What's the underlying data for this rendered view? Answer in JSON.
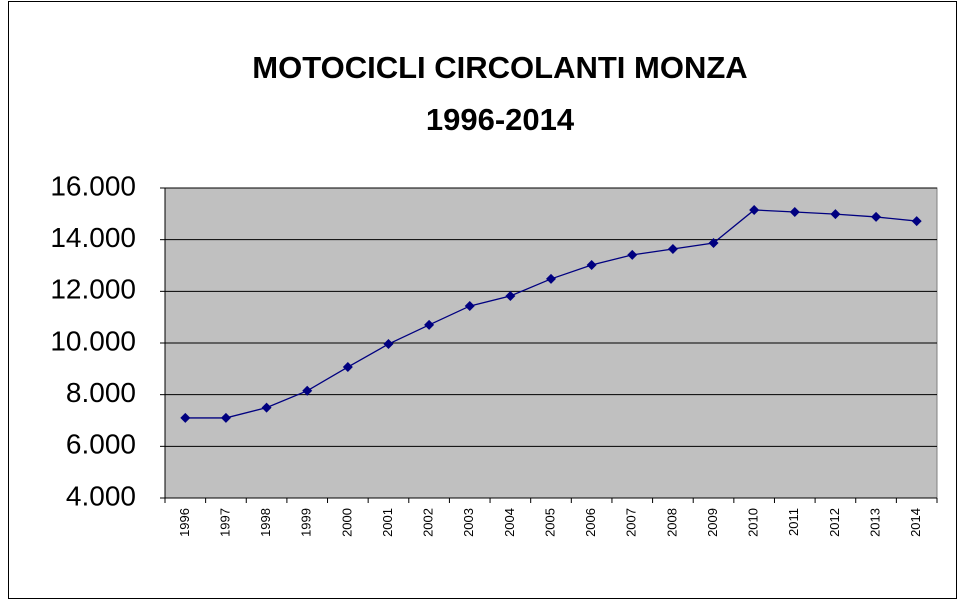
{
  "chart_data": {
    "type": "line",
    "title": [
      "MOTOCICLI CIRCOLANTI MONZA",
      "1996-2014"
    ],
    "categories": [
      "1996",
      "1997",
      "1998",
      "1999",
      "2000",
      "2001",
      "2002",
      "2003",
      "2004",
      "2005",
      "2006",
      "2007",
      "2008",
      "2009",
      "2010",
      "2011",
      "2012",
      "2013",
      "2014"
    ],
    "values": [
      7100,
      7100,
      7500,
      8150,
      9070,
      9960,
      10700,
      11430,
      11820,
      12480,
      13020,
      13410,
      13640,
      13870,
      15150,
      15070,
      14990,
      14880,
      14720
    ],
    "color": "#000080",
    "ylim": [
      4000,
      16000
    ],
    "yticks": [
      {
        "value": 4000,
        "label": "4.000"
      },
      {
        "value": 6000,
        "label": "6.000"
      },
      {
        "value": 8000,
        "label": "8.000"
      },
      {
        "value": 10000,
        "label": "10.000"
      },
      {
        "value": 12000,
        "label": "12.000"
      },
      {
        "value": 14000,
        "label": "14.000"
      },
      {
        "value": 16000,
        "label": "16.000"
      }
    ],
    "grid": true
  }
}
